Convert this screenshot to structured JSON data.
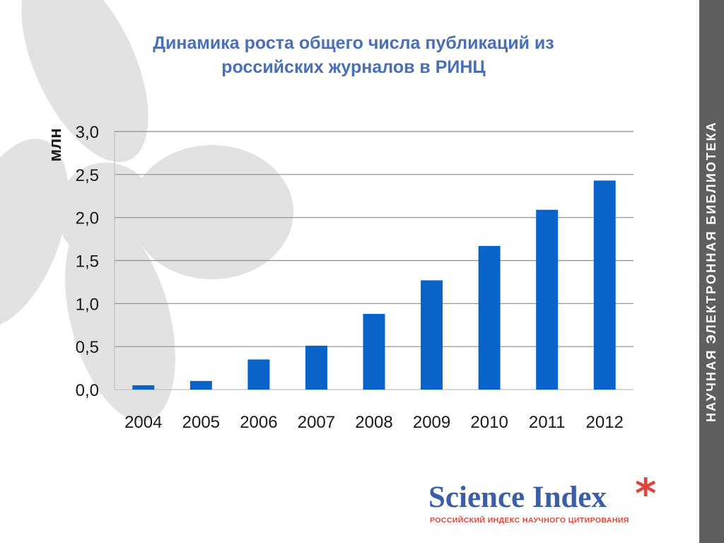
{
  "slide": {
    "title_lines": [
      "Динамика роста общего числа публикаций из",
      "российских журналов в РИНЦ"
    ],
    "side_label": "НАУЧНАЯ ЭЛЕКТРОННАЯ БИБЛИОТЕКА",
    "logo": {
      "name": "Science Index",
      "star": "*",
      "subtitle": "РОССИЙСКИЙ ИНДЕКС НАУЧНОГО ЦИТИРОВАНИЯ"
    }
  },
  "colors": {
    "title": "#4a6fb5",
    "bar": "#0a63c9",
    "grid": "#8c8c8c",
    "axis": "#bfbfbf",
    "text": "#1a1a1a",
    "side_band": "#5f5f5f",
    "side_text": "#ffffff",
    "flower": "#e2e2e2",
    "logo_name": "#3b5fa6",
    "logo_accent": "#e0463b"
  },
  "chart_data": {
    "type": "bar",
    "categories": [
      "2004",
      "2005",
      "2006",
      "2007",
      "2008",
      "2009",
      "2010",
      "2011",
      "2012"
    ],
    "values": [
      0.05,
      0.1,
      0.35,
      0.51,
      0.88,
      1.27,
      1.67,
      2.09,
      2.43
    ],
    "ylabel": "млн",
    "ylim": [
      0,
      3.0
    ],
    "yticks": [
      0.0,
      0.5,
      1.0,
      1.5,
      2.0,
      2.5,
      3.0
    ],
    "ytick_labels": [
      "0,0",
      "0,5",
      "1,0",
      "1,5",
      "2,0",
      "2,5",
      "3,0"
    ],
    "grid": true
  }
}
